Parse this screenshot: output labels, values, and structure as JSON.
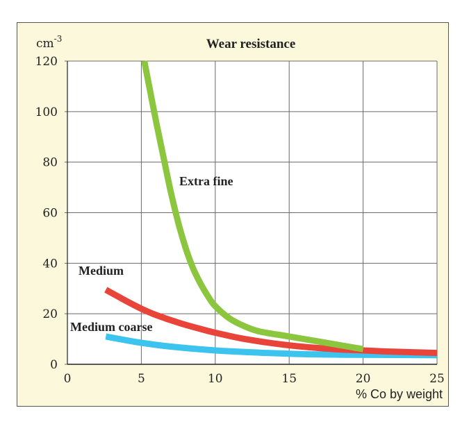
{
  "chart_data": {
    "type": "line",
    "title": "Wear resistance",
    "xlabel": "% Co by weight",
    "ylabel_unit": "cm",
    "ylabel_exp": "-3",
    "xlim": [
      0,
      25
    ],
    "ylim": [
      0,
      120
    ],
    "xticks": [
      0,
      5,
      10,
      15,
      20,
      25
    ],
    "yticks": [
      0,
      20,
      40,
      60,
      80,
      100,
      120
    ],
    "grid": true,
    "series": [
      {
        "name": "Extra fine",
        "color": "#8cc63f",
        "x": [
          5.2,
          5.6,
          6.0,
          6.5,
          7.0,
          7.5,
          8.0,
          8.5,
          9.0,
          9.5,
          10.0,
          11.0,
          12.0,
          13.0,
          15.0,
          17.0,
          19.0,
          20.0
        ],
        "y": [
          120,
          108,
          96,
          82,
          68,
          56,
          46,
          38,
          32,
          27,
          23,
          18,
          15,
          13,
          11,
          9,
          7,
          6
        ]
      },
      {
        "name": "Medium",
        "color": "#e8443a",
        "x": [
          2.6,
          4.0,
          5.0,
          6.0,
          7.5,
          9.0,
          10.0,
          12.0,
          15.0,
          18.0,
          20.0,
          22.0,
          25.0
        ],
        "y": [
          29.5,
          25,
          22,
          19.5,
          16.5,
          14,
          12.5,
          10,
          7.5,
          6,
          5.5,
          5,
          4.5
        ]
      },
      {
        "name": "Medium coarse",
        "color": "#3cc4ee",
        "x": [
          2.6,
          4.0,
          5.0,
          7.0,
          10.0,
          13.0,
          16.0,
          19.0,
          22.0,
          25.0
        ],
        "y": [
          11,
          9.5,
          8.5,
          7,
          5.5,
          4.6,
          4,
          3.8,
          3.7,
          3.6
        ]
      }
    ]
  }
}
